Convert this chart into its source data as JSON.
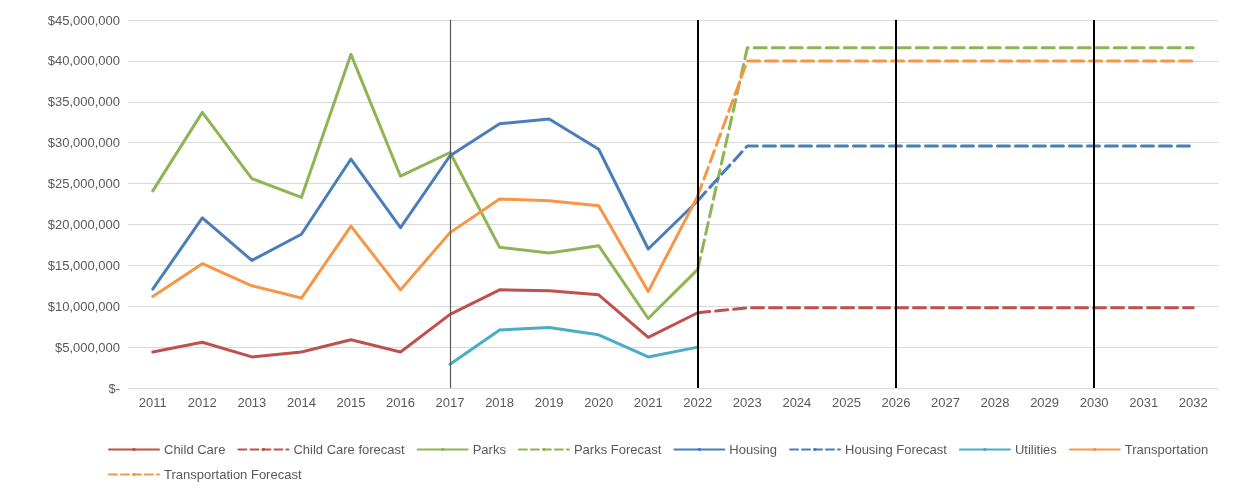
{
  "chart_data": {
    "type": "line",
    "categories": [
      "2011",
      "2012",
      "2013",
      "2014",
      "2015",
      "2016",
      "2017",
      "2018",
      "2019",
      "2020",
      "2021",
      "2022",
      "2023",
      "2024",
      "2025",
      "2026",
      "2027",
      "2028",
      "2029",
      "2030",
      "2031",
      "2032"
    ],
    "series": [
      {
        "name": "Child Care",
        "color": "#c0504d",
        "values": [
          4400000,
          5600000,
          3800000,
          4400000,
          5900000,
          4400000,
          9000000,
          12000000,
          11900000,
          11400000,
          6200000,
          9200000,
          null,
          null,
          null,
          null,
          null,
          null,
          null,
          null,
          null,
          null
        ]
      },
      {
        "name": "Child Care forecast",
        "color": "#c0504d",
        "line_style": "dashed",
        "values": [
          null,
          null,
          null,
          null,
          null,
          null,
          null,
          null,
          null,
          null,
          null,
          9200000,
          9800000,
          9800000,
          9800000,
          9800000,
          9800000,
          9800000,
          9800000,
          9800000,
          9800000,
          9800000
        ]
      },
      {
        "name": "Parks",
        "color": "#8db553",
        "values": [
          24100000,
          33700000,
          25600000,
          23300000,
          40800000,
          25900000,
          28800000,
          17200000,
          16500000,
          17400000,
          8500000,
          14500000,
          null,
          null,
          null,
          null,
          null,
          null,
          null,
          null,
          null,
          null
        ]
      },
      {
        "name": "Parks Forecast",
        "color": "#8db553",
        "line_style": "dashed",
        "values": [
          null,
          null,
          null,
          null,
          null,
          null,
          null,
          null,
          null,
          null,
          null,
          14500000,
          41600000,
          41600000,
          41600000,
          41600000,
          41600000,
          41600000,
          41600000,
          41600000,
          41600000,
          41600000
        ]
      },
      {
        "name": "Housing",
        "color": "#4a7ebb",
        "values": [
          12100000,
          20800000,
          15600000,
          18800000,
          28000000,
          19600000,
          28400000,
          32300000,
          32900000,
          29200000,
          17000000,
          22900000,
          null,
          null,
          null,
          null,
          null,
          null,
          null,
          null,
          null,
          null
        ]
      },
      {
        "name": "Housing Forecast",
        "color": "#4a7ebb",
        "line_style": "dashed",
        "values": [
          null,
          null,
          null,
          null,
          null,
          null,
          null,
          null,
          null,
          null,
          null,
          22900000,
          29600000,
          29600000,
          29600000,
          29600000,
          29600000,
          29600000,
          29600000,
          29600000,
          29600000,
          29600000
        ]
      },
      {
        "name": "Utilities",
        "color": "#4bacc6",
        "values": [
          null,
          null,
          null,
          null,
          null,
          null,
          2900000,
          7100000,
          7400000,
          6500000,
          3800000,
          5000000,
          null,
          null,
          null,
          null,
          null,
          null,
          null,
          null,
          null,
          null
        ]
      },
      {
        "name": "Transportation",
        "color": "#f79646",
        "values": [
          11200000,
          15200000,
          12500000,
          11000000,
          19800000,
          12000000,
          19000000,
          23100000,
          22900000,
          22300000,
          11800000,
          23500000,
          null,
          null,
          null,
          null,
          null,
          null,
          null,
          null,
          null,
          null
        ]
      },
      {
        "name": "Transportation Forecast",
        "color": "#f79646",
        "line_style": "dashed",
        "values": [
          null,
          null,
          null,
          null,
          null,
          null,
          null,
          null,
          null,
          null,
          null,
          23500000,
          40000000,
          40000000,
          40000000,
          40000000,
          40000000,
          40000000,
          40000000,
          40000000,
          40000000,
          40000000
        ]
      }
    ],
    "ylim": [
      0,
      45000000
    ],
    "yticks": [
      {
        "value": 0,
        "label": "$-"
      },
      {
        "value": 5000000,
        "label": "$5,000,000"
      },
      {
        "value": 10000000,
        "label": "$10,000,000"
      },
      {
        "value": 15000000,
        "label": "$15,000,000"
      },
      {
        "value": 20000000,
        "label": "$20,000,000"
      },
      {
        "value": 25000000,
        "label": "$25,000,000"
      },
      {
        "value": 30000000,
        "label": "$30,000,000"
      },
      {
        "value": 35000000,
        "label": "$35,000,000"
      },
      {
        "value": 40000000,
        "label": "$40,000,000"
      },
      {
        "value": 45000000,
        "label": "$45,000,000"
      }
    ],
    "ref_lines": [
      {
        "axis": "x",
        "value": "2017",
        "color": "#595959"
      },
      {
        "axis": "x",
        "value": "2022",
        "color": "#000000"
      },
      {
        "axis": "x",
        "value": "2026",
        "color": "#000000"
      },
      {
        "axis": "x",
        "value": "2030",
        "color": "#000000"
      }
    ],
    "grid": "y",
    "legend": "bottom",
    "marker": "none",
    "line_style": "solid"
  }
}
